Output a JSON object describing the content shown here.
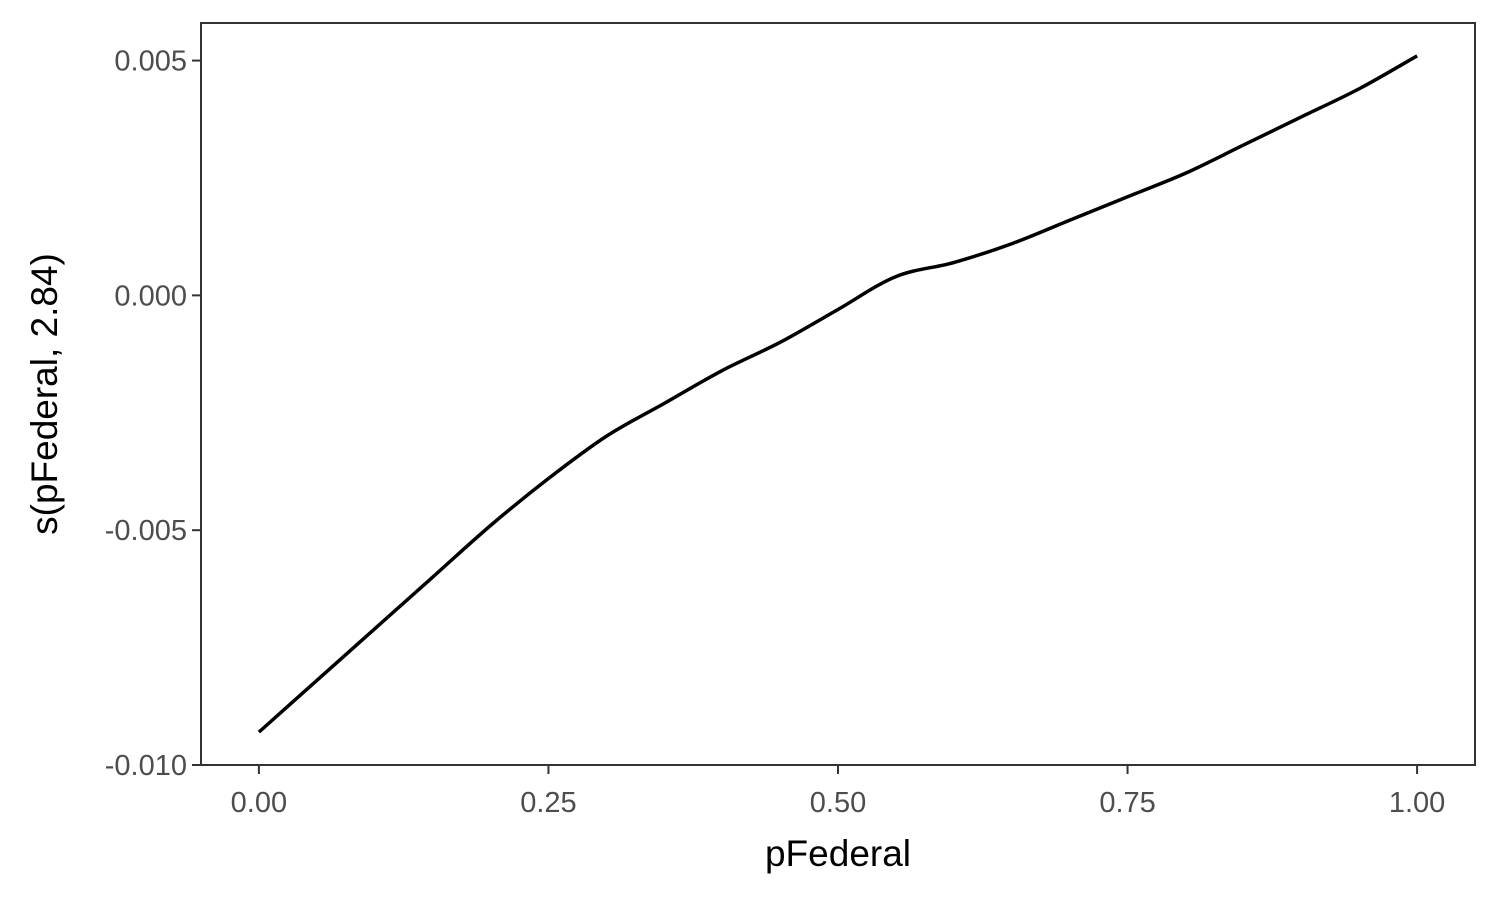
{
  "chart_data": {
    "type": "line",
    "xlabel": "pFederal",
    "ylabel": "s(pFederal, 2.84)",
    "xlim": [
      -0.05,
      1.05
    ],
    "ylim": [
      -0.01,
      0.0058
    ],
    "x_ticks": [
      {
        "value": 0.0,
        "label": "0.00"
      },
      {
        "value": 0.25,
        "label": "0.25"
      },
      {
        "value": 0.5,
        "label": "0.50"
      },
      {
        "value": 0.75,
        "label": "0.75"
      },
      {
        "value": 1.0,
        "label": "1.00"
      }
    ],
    "y_ticks": [
      {
        "value": -0.01,
        "label": "-0.010"
      },
      {
        "value": -0.005,
        "label": "-0.005"
      },
      {
        "value": 0.0,
        "label": "0.000"
      },
      {
        "value": 0.005,
        "label": "0.005"
      }
    ],
    "grid": false,
    "series": [
      {
        "x": [
          0.0,
          0.05,
          0.1,
          0.15,
          0.2,
          0.25,
          0.3,
          0.35,
          0.4,
          0.45,
          0.5,
          0.55,
          0.6,
          0.65,
          0.7,
          0.75,
          0.8,
          0.85,
          0.9,
          0.95,
          1.0
        ],
        "y": [
          -0.0093,
          -0.0082,
          -0.0071,
          -0.006,
          -0.0049,
          -0.0039,
          -0.003,
          -0.0023,
          -0.0016,
          -0.001,
          -0.0003,
          0.0004,
          0.0007,
          0.0011,
          0.0016,
          0.0021,
          0.0026,
          0.0032,
          0.0038,
          0.0044,
          0.0051
        ],
        "color": "#000000"
      }
    ],
    "colors": {
      "line": "#000000",
      "panel_border": "#333333",
      "tick_text": "#4d4d4d",
      "background": "#ffffff"
    }
  }
}
